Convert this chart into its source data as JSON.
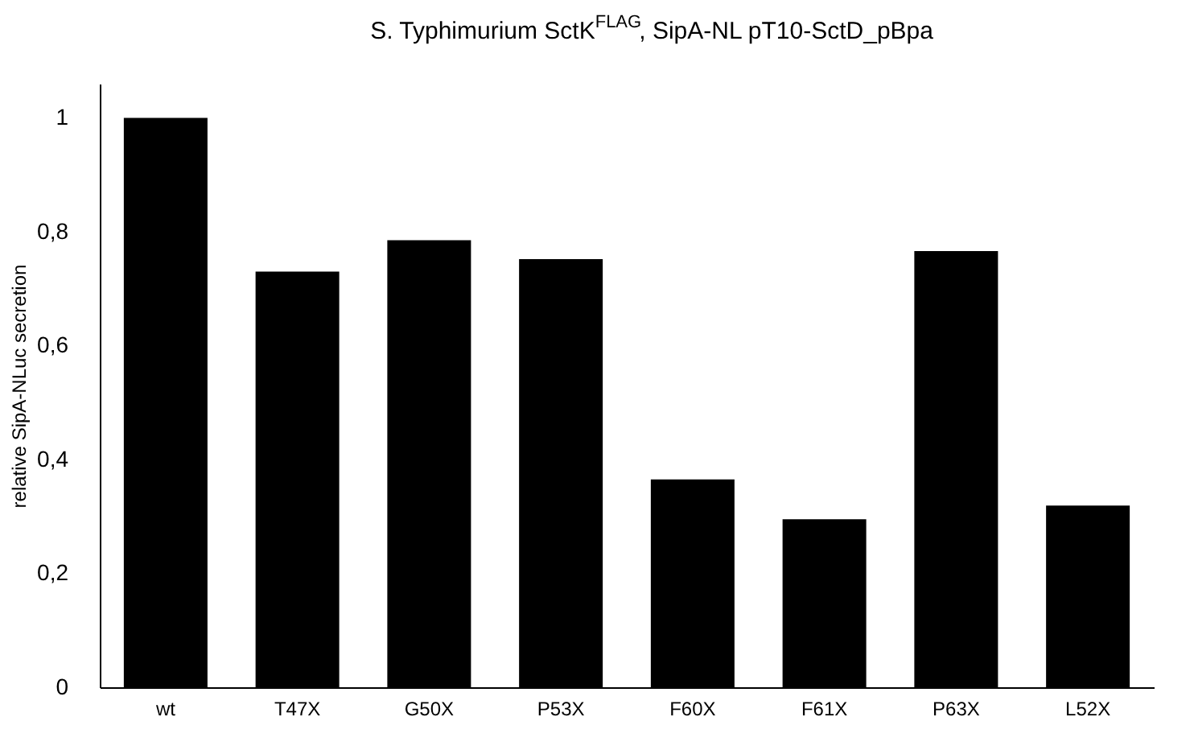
{
  "chart_data": {
    "type": "bar",
    "title": "S. Typhimurium SctK$^{FLAG}$, SipA-NL pT10-SctD_pBpa",
    "ylabel": "relative SipA-NLuc secretion",
    "categories": [
      "wt",
      "T47X",
      "G50X",
      "P53X",
      "F60X",
      "F61X",
      "P63X",
      "L52X"
    ],
    "values": [
      1.0,
      0.73,
      0.785,
      0.752,
      0.365,
      0.295,
      0.766,
      0.319
    ],
    "color": "#000000",
    "ylim": [
      0,
      1.06
    ],
    "yticks": [
      0,
      {
        "value": 0.2,
        "label": "0,2"
      },
      {
        "value": 0.4,
        "label": "0,4"
      },
      {
        "value": 0.6,
        "label": "0,6"
      },
      {
        "value": 0.8,
        "label": "0,8"
      },
      1
    ],
    "grid": false
  }
}
